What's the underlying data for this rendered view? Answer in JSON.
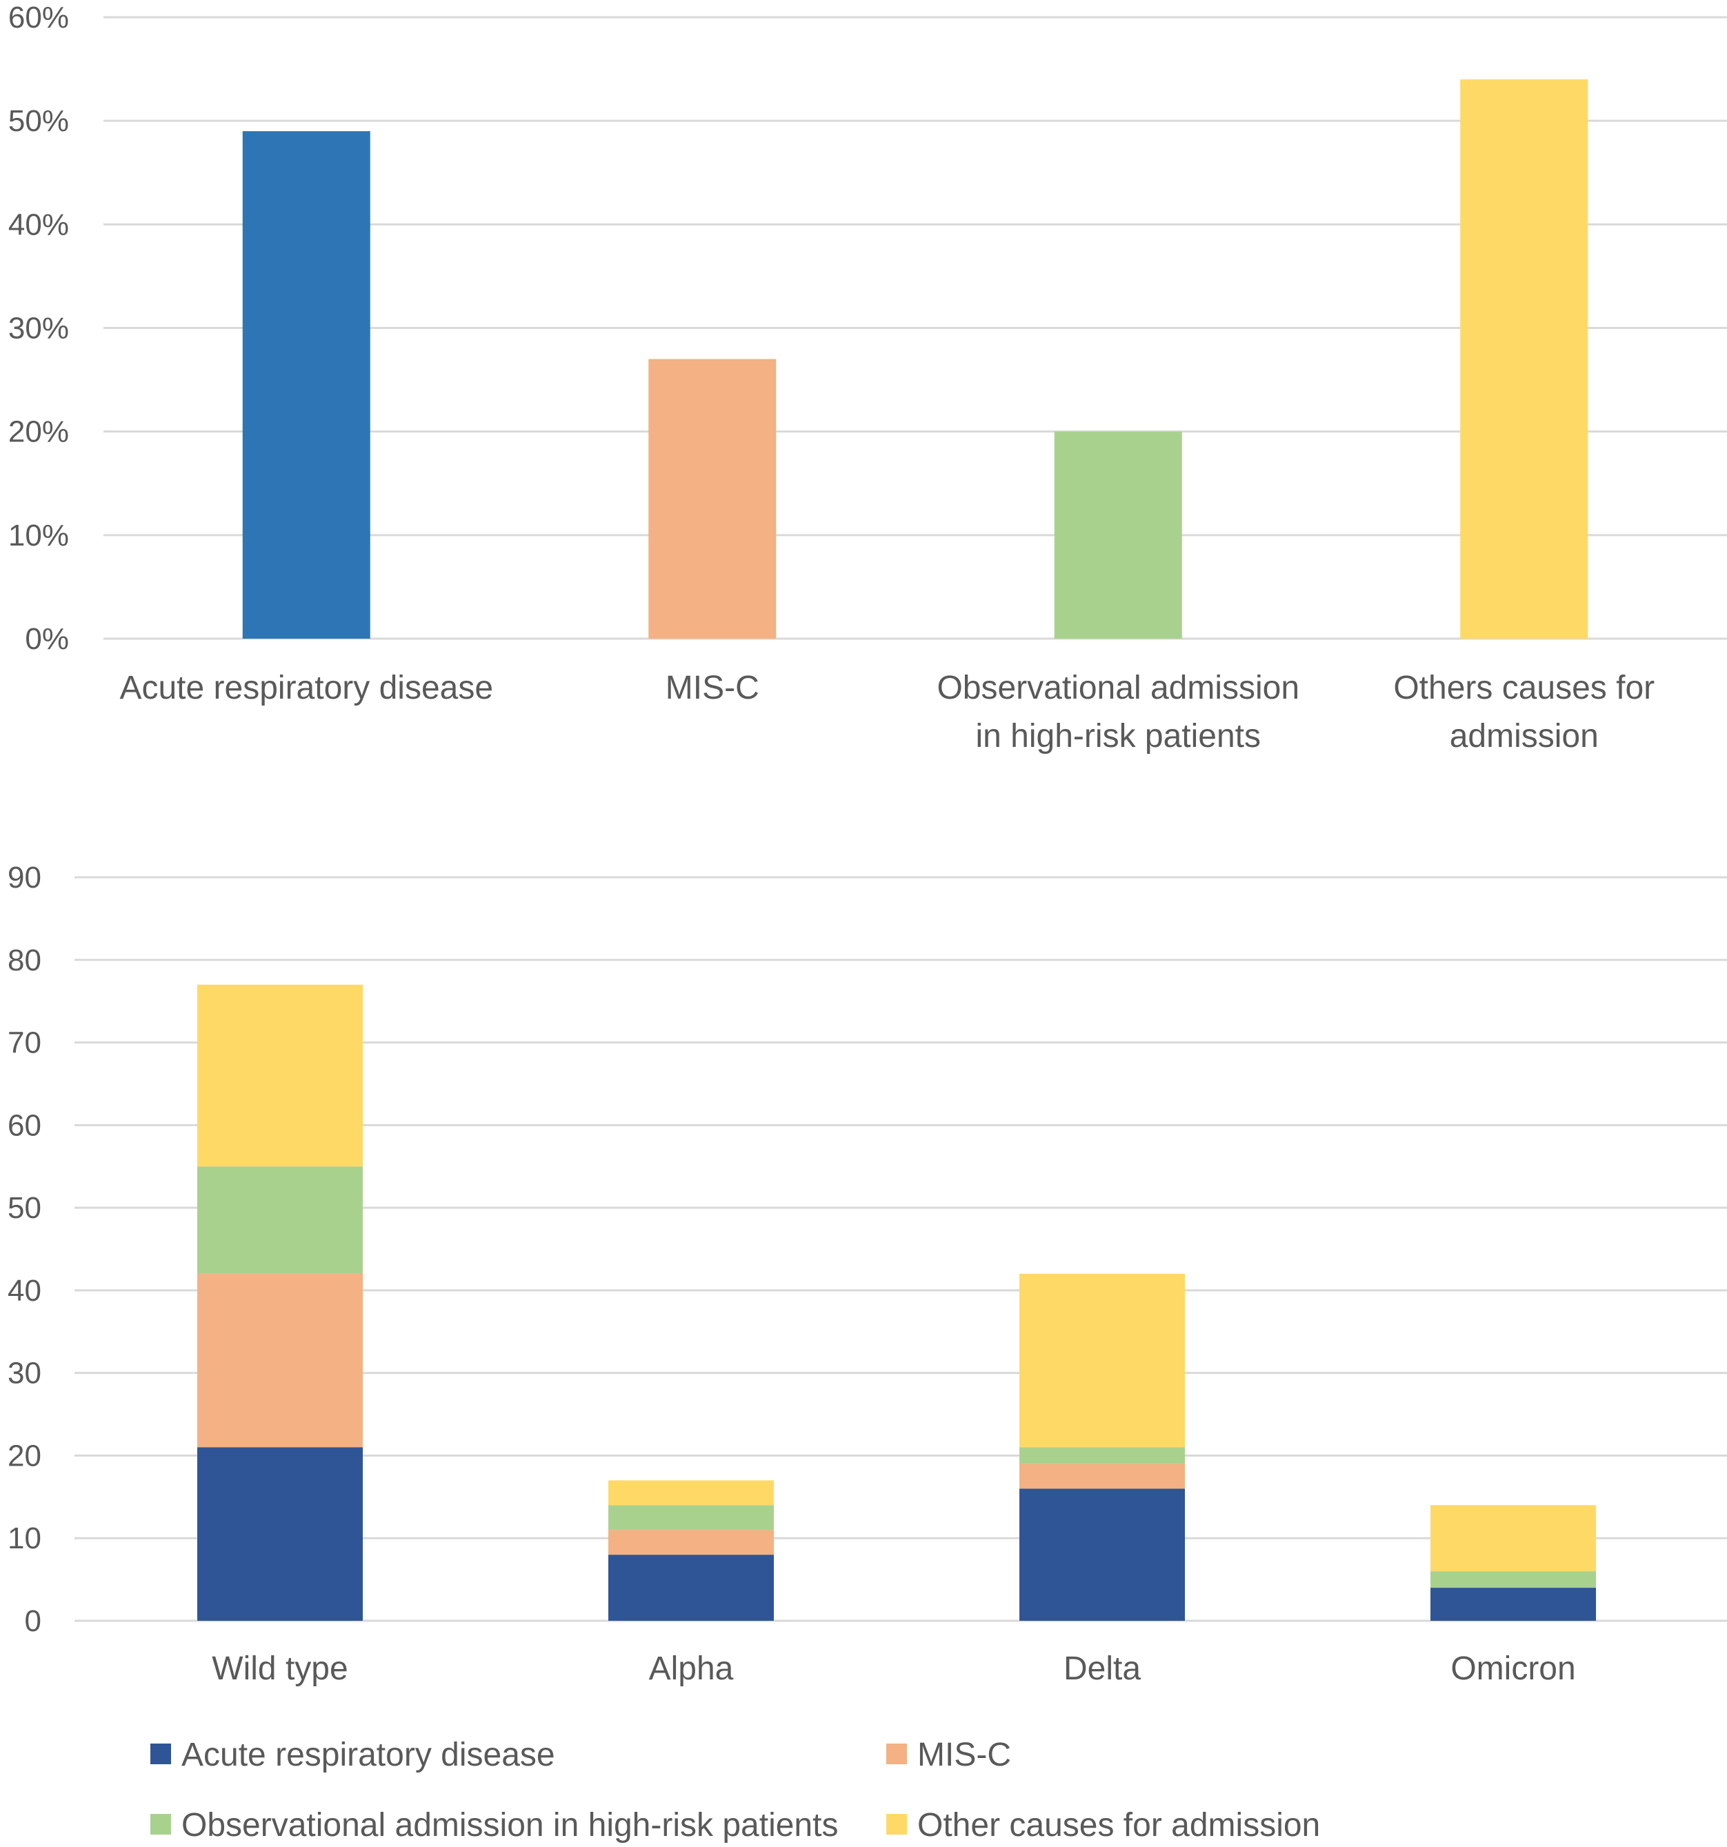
{
  "chart_data": [
    {
      "type": "bar",
      "title": "",
      "xlabel": "",
      "ylabel": "",
      "categories": [
        [
          "Acute respiratory disease"
        ],
        [
          "MIS-C"
        ],
        [
          "Observational admission",
          "in high-risk patients"
        ],
        [
          "Others causes for",
          "admission"
        ]
      ],
      "values": [
        49,
        27,
        20,
        54
      ],
      "colors": [
        "#2e75b6",
        "#f4b183",
        "#a9d18e",
        "#ffd966"
      ],
      "ylim": [
        0,
        60
      ],
      "yticks": [
        "0%",
        "10%",
        "20%",
        "30%",
        "40%",
        "50%",
        "60%"
      ],
      "grid": true,
      "legend": "none"
    },
    {
      "type": "bar",
      "stacked": true,
      "title": "",
      "xlabel": "",
      "ylabel": "",
      "categories": [
        "Wild type",
        "Alpha",
        "Delta",
        "Omicron"
      ],
      "series": [
        {
          "name": "Acute respiratory disease",
          "values": [
            21,
            8,
            16,
            4
          ],
          "color": "#2f5597"
        },
        {
          "name": "MIS-C",
          "values": [
            21,
            3,
            3,
            0
          ],
          "color": "#f4b183"
        },
        {
          "name": "Observational admission in high-risk patients",
          "values": [
            13,
            3,
            2,
            2
          ],
          "color": "#a9d18e"
        },
        {
          "name": "Other causes for admission",
          "values": [
            22,
            3,
            21,
            8
          ],
          "color": "#ffd966"
        }
      ],
      "ylim": [
        0,
        90
      ],
      "yticks": [
        "0",
        "10",
        "20",
        "30",
        "40",
        "50",
        "60",
        "70",
        "80",
        "90"
      ],
      "grid": true,
      "legend": "bottom"
    }
  ]
}
